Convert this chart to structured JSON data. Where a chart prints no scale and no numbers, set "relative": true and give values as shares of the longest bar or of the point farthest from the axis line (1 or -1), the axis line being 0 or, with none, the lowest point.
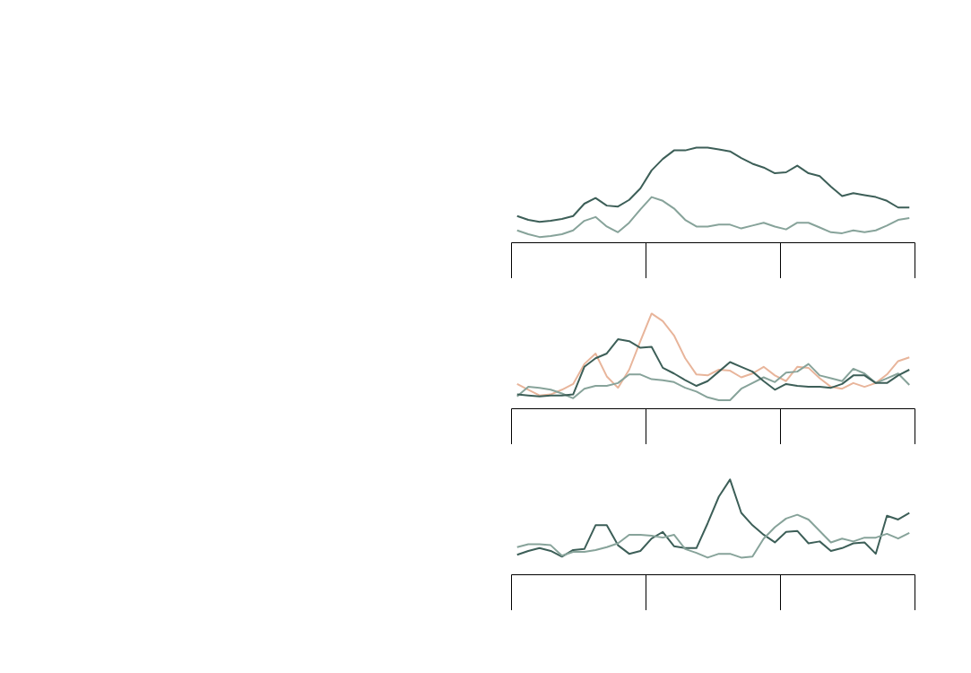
{
  "chart_data": [
    {
      "type": "line",
      "relative": true,
      "grid": false,
      "categories": [
        null,
        null,
        null,
        null,
        null,
        null,
        null,
        null,
        null,
        null,
        null,
        null,
        null,
        null,
        null,
        null,
        null,
        null,
        null,
        null,
        null,
        null,
        null,
        null,
        null,
        null,
        null,
        null,
        null,
        null,
        null,
        null,
        null,
        null,
        null,
        null
      ],
      "series": [
        {
          "color": "#3d5f58",
          "values": [
            0.28,
            0.24,
            0.22,
            0.23,
            0.25,
            0.28,
            0.41,
            0.47,
            0.39,
            0.38,
            0.45,
            0.57,
            0.76,
            0.88,
            0.97,
            0.97,
            1.0,
            1.0,
            0.98,
            0.96,
            0.89,
            0.83,
            0.79,
            0.73,
            0.74,
            0.81,
            0.73,
            0.7,
            0.59,
            0.49,
            0.52,
            0.5,
            0.48,
            0.44,
            0.37,
            0.37
          ]
        },
        {
          "color": "#87a39a",
          "values": [
            0.13,
            0.09,
            0.06,
            0.07,
            0.09,
            0.13,
            0.23,
            0.27,
            0.17,
            0.11,
            0.21,
            0.35,
            0.48,
            0.44,
            0.36,
            0.24,
            0.17,
            0.17,
            0.19,
            0.19,
            0.15,
            0.18,
            0.21,
            0.17,
            0.14,
            0.21,
            0.21,
            0.16,
            0.11,
            0.1,
            0.13,
            0.11,
            0.13,
            0.18,
            0.24,
            0.26
          ]
        }
      ]
    },
    {
      "type": "line",
      "relative": true,
      "grid": false,
      "categories": [
        null,
        null,
        null,
        null,
        null,
        null,
        null,
        null,
        null,
        null,
        null,
        null,
        null,
        null,
        null,
        null,
        null,
        null,
        null,
        null,
        null,
        null,
        null,
        null,
        null,
        null,
        null,
        null,
        null,
        null,
        null,
        null,
        null,
        null,
        null,
        null
      ],
      "series": [
        {
          "color": "#e8b59b",
          "values": [
            0.26,
            0.2,
            0.14,
            0.15,
            0.2,
            0.26,
            0.47,
            0.58,
            0.34,
            0.22,
            0.41,
            0.71,
            1.0,
            0.92,
            0.77,
            0.53,
            0.36,
            0.35,
            0.41,
            0.4,
            0.33,
            0.37,
            0.44,
            0.35,
            0.29,
            0.44,
            0.43,
            0.32,
            0.23,
            0.21,
            0.27,
            0.23,
            0.27,
            0.36,
            0.5,
            0.54
          ]
        },
        {
          "color": "#87a39a",
          "values": [
            0.13,
            0.23,
            0.22,
            0.2,
            0.16,
            0.11,
            0.21,
            0.24,
            0.24,
            0.27,
            0.36,
            0.36,
            0.31,
            0.3,
            0.28,
            0.22,
            0.18,
            0.12,
            0.09,
            0.09,
            0.21,
            0.27,
            0.33,
            0.28,
            0.38,
            0.39,
            0.47,
            0.35,
            0.32,
            0.29,
            0.42,
            0.37,
            0.27,
            0.32,
            0.37,
            0.25
          ]
        },
        {
          "color": "#3d5f58",
          "values": [
            0.15,
            0.14,
            0.13,
            0.14,
            0.14,
            0.15,
            0.44,
            0.53,
            0.58,
            0.73,
            0.71,
            0.64,
            0.65,
            0.43,
            0.37,
            0.3,
            0.24,
            0.29,
            0.39,
            0.49,
            0.44,
            0.39,
            0.29,
            0.2,
            0.26,
            0.24,
            0.23,
            0.23,
            0.22,
            0.26,
            0.35,
            0.35,
            0.27,
            0.27,
            0.35,
            0.41
          ]
        }
      ]
    },
    {
      "type": "line",
      "relative": true,
      "grid": false,
      "categories": [
        null,
        null,
        null,
        null,
        null,
        null,
        null,
        null,
        null,
        null,
        null,
        null,
        null,
        null,
        null,
        null,
        null,
        null,
        null,
        null,
        null,
        null,
        null,
        null,
        null,
        null,
        null,
        null,
        null,
        null,
        null,
        null,
        null,
        null,
        null,
        null
      ],
      "series": [
        {
          "color": "#3d5f58",
          "values": [
            0.21,
            0.25,
            0.28,
            0.25,
            0.19,
            0.26,
            0.27,
            0.52,
            0.52,
            0.31,
            0.22,
            0.25,
            0.38,
            0.45,
            0.3,
            0.28,
            0.28,
            0.54,
            0.82,
            1.0,
            0.65,
            0.52,
            0.42,
            0.34,
            0.45,
            0.46,
            0.33,
            0.35,
            0.25,
            0.28,
            0.33,
            0.34,
            0.22,
            0.62,
            0.58,
            0.65
          ]
        },
        {
          "color": "#87a39a",
          "values": [
            0.29,
            0.32,
            0.32,
            0.31,
            0.2,
            0.24,
            0.24,
            0.26,
            0.29,
            0.33,
            0.42,
            0.42,
            0.41,
            0.39,
            0.42,
            0.27,
            0.23,
            0.18,
            0.22,
            0.22,
            0.18,
            0.19,
            0.38,
            0.5,
            0.59,
            0.63,
            0.58,
            0.46,
            0.34,
            0.38,
            0.35,
            0.39,
            0.39,
            0.43,
            0.38,
            0.44
          ]
        }
      ]
    }
  ]
}
